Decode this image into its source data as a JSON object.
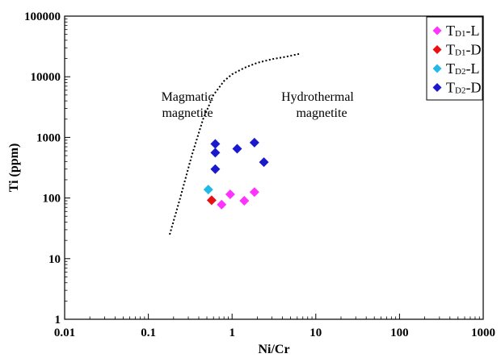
{
  "chart_data": {
    "type": "scatter",
    "xlabel": "Ni/Cr",
    "ylabel": "Ti (ppm)",
    "x_scale": "log",
    "y_scale": "log",
    "xlim": [
      0.01,
      1000
    ],
    "ylim": [
      1,
      100000
    ],
    "x_ticks": [
      "0.01",
      "0.1",
      "1",
      "10",
      "100",
      "1000"
    ],
    "y_ticks": [
      "1",
      "10",
      "100",
      "1000",
      "10000",
      "100000"
    ],
    "grid": false,
    "legend_position": "top-right",
    "boundary_line": {
      "style": "dotted",
      "x": [
        0.18,
        0.24,
        0.33,
        0.45,
        0.6,
        0.8,
        1.0,
        1.4,
        2.0,
        3.0,
        4.5,
        6.5
      ],
      "y": [
        25,
        100,
        500,
        2000,
        5000,
        8500,
        11000,
        14000,
        17000,
        19500,
        21500,
        24000
      ]
    },
    "annotations": [
      {
        "id": "magmatic",
        "lines": [
          "Magmatic",
          "magnetite"
        ]
      },
      {
        "id": "hydrothermal",
        "lines": [
          "Hydrothermal",
          "magnetite"
        ]
      }
    ],
    "series": [
      {
        "name": "TD1-L",
        "name_main": "T",
        "name_sub": "D1",
        "name_suffix": "-L",
        "color": "#ff33ff",
        "points": [
          [
            0.75,
            78
          ],
          [
            0.95,
            115
          ],
          [
            1.4,
            90
          ],
          [
            1.85,
            125
          ]
        ]
      },
      {
        "name": "TD1-D",
        "name_main": "T",
        "name_sub": "D1",
        "name_suffix": "-D",
        "color": "#e81010",
        "points": [
          [
            0.57,
            92
          ]
        ]
      },
      {
        "name": "TD2-L",
        "name_main": "T",
        "name_sub": "D2",
        "name_suffix": "-L",
        "color": "#22b8e8",
        "points": [
          [
            0.52,
            138
          ]
        ]
      },
      {
        "name": "TD2-D",
        "name_main": "T",
        "name_sub": "D2",
        "name_suffix": "-D",
        "color": "#1a1acc",
        "points": [
          [
            0.63,
            780
          ],
          [
            0.63,
            560
          ],
          [
            0.63,
            300
          ],
          [
            1.15,
            650
          ],
          [
            1.85,
            820
          ],
          [
            2.4,
            390
          ]
        ]
      }
    ]
  }
}
